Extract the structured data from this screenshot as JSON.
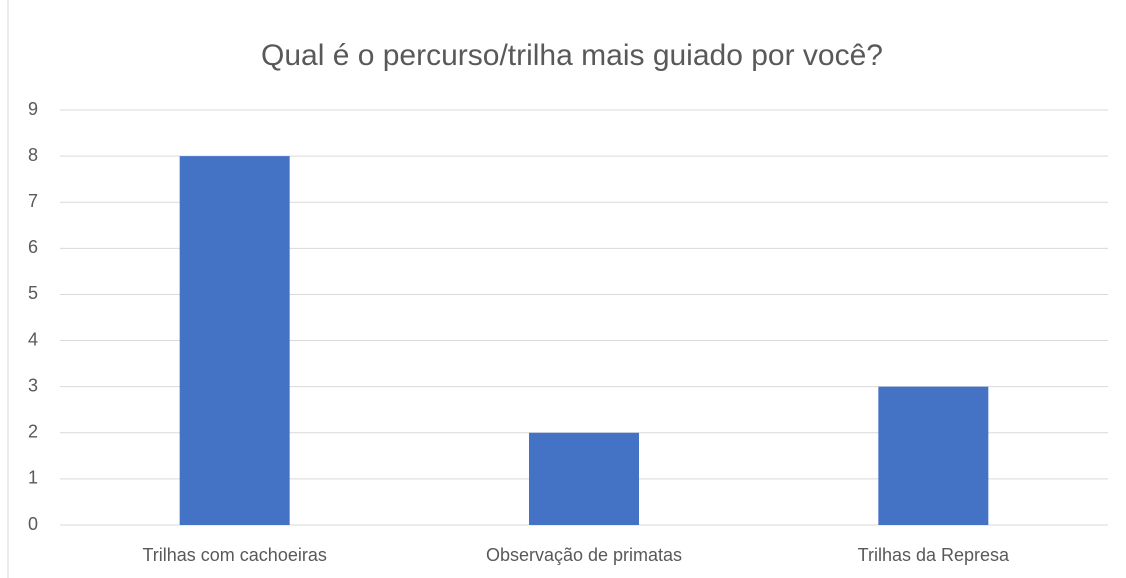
{
  "chart_data": {
    "type": "bar",
    "title": "Qual é o percurso/trilha mais guiado por você?",
    "categories": [
      "Trilhas com cachoeiras",
      "Observação de primatas",
      "Trilhas da Represa"
    ],
    "values": [
      8,
      2,
      3
    ],
    "color": "#4472c4",
    "ylim": [
      0,
      9
    ],
    "yticks": [
      0,
      1,
      2,
      3,
      4,
      5,
      6,
      7,
      8,
      9
    ],
    "grid": true
  }
}
